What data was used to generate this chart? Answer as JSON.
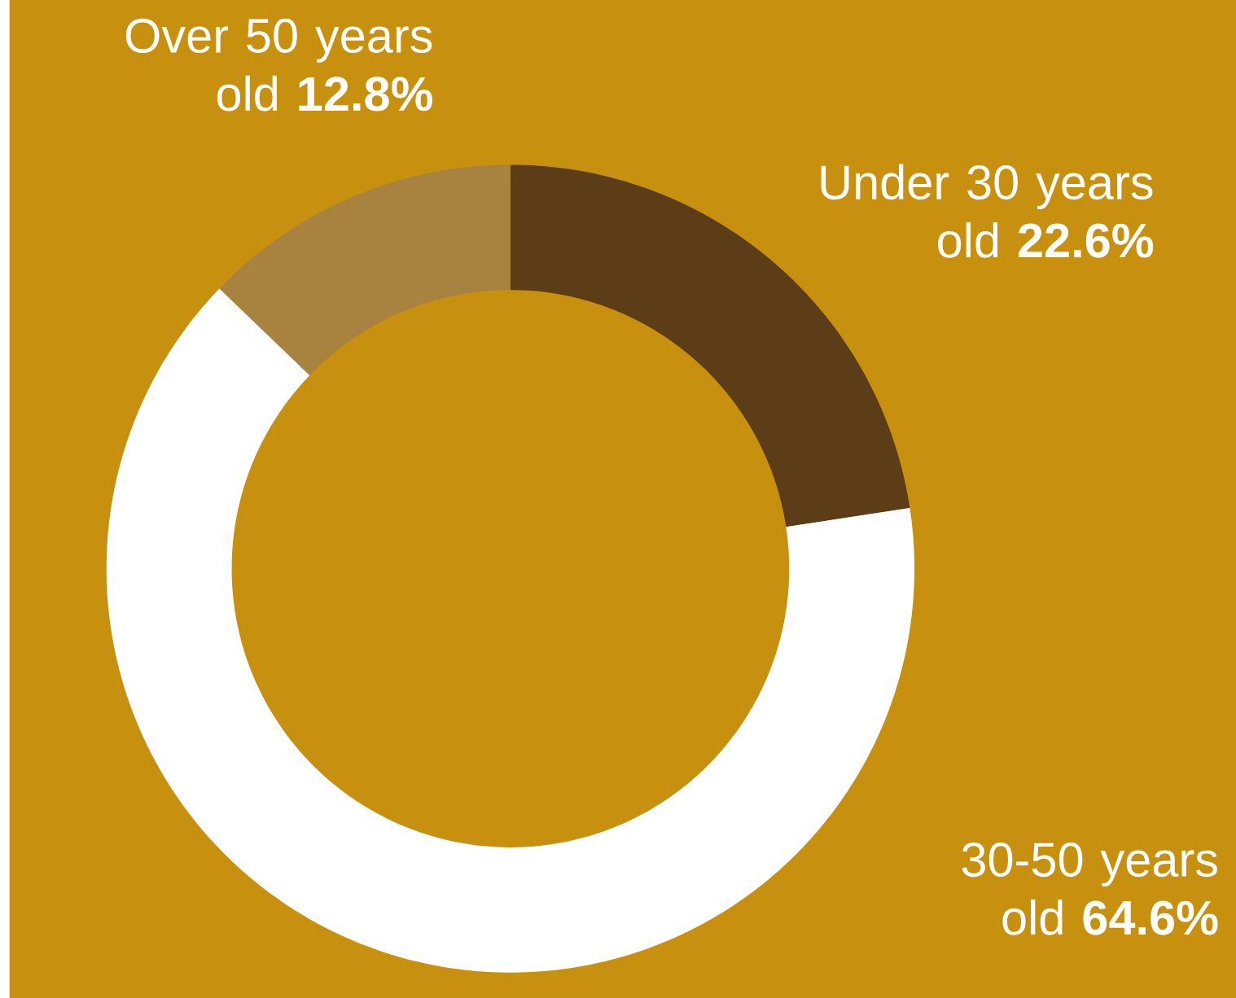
{
  "chart_data": {
    "type": "donut",
    "categories": [
      "Under 30 years old",
      "30-50 years old",
      "Over 50 years old"
    ],
    "values": [
      22.6,
      64.6,
      12.8
    ],
    "value_labels": [
      "22.6%",
      "64.6%",
      "12.8%"
    ],
    "colors": [
      "#5c3d17",
      "#ffffff",
      "#a8823f"
    ]
  }
}
